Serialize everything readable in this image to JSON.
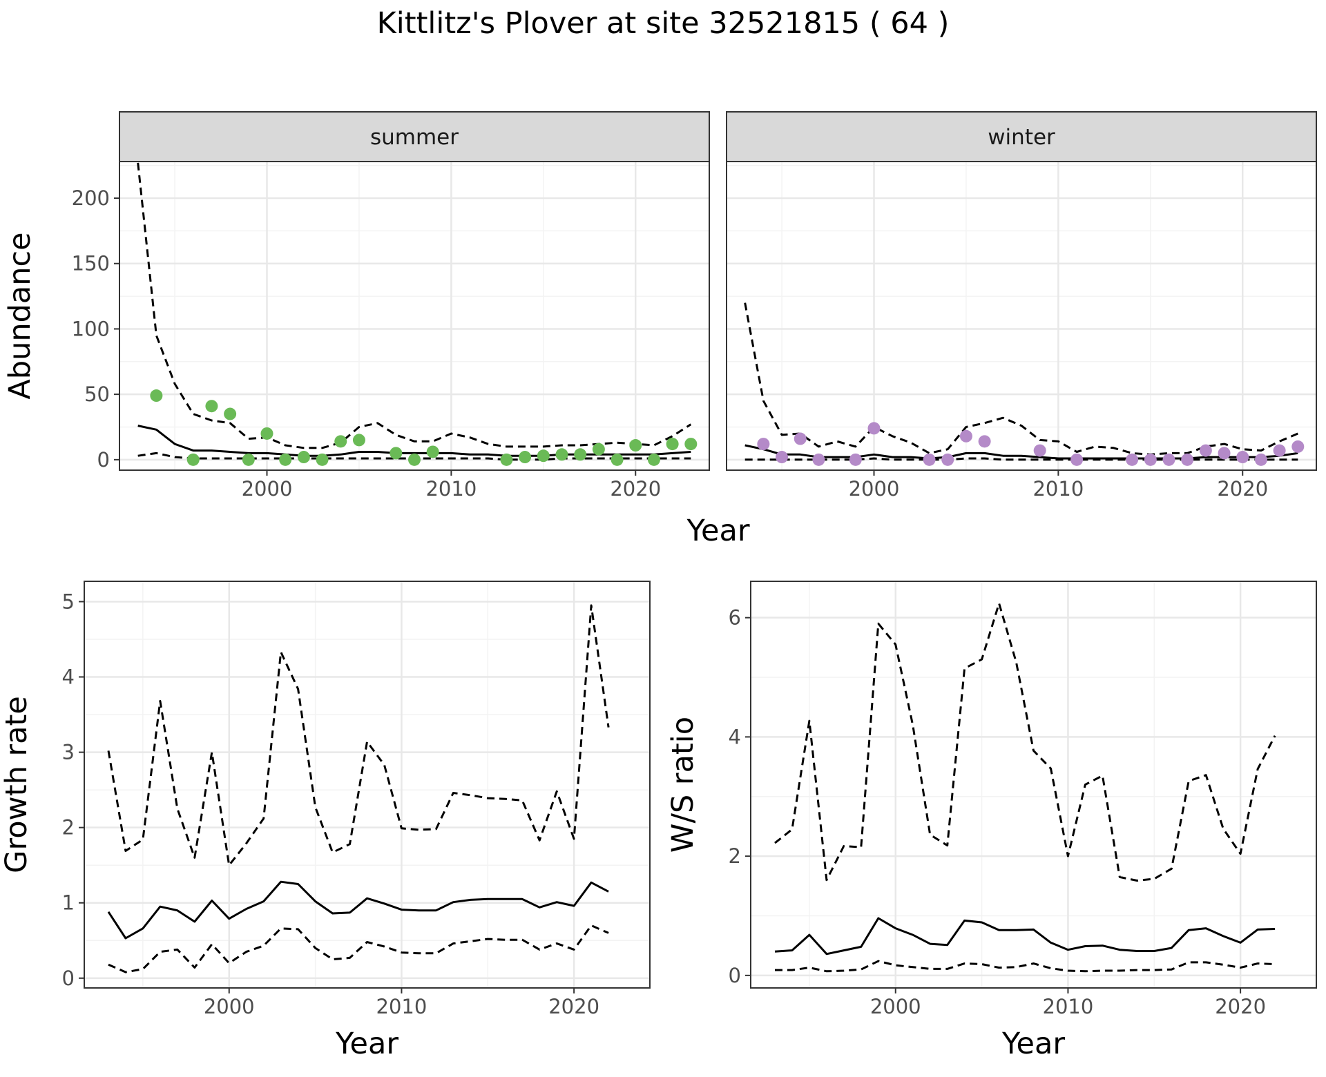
{
  "title": "Kittlitz's Plover at site 32521815 ( 64 )",
  "colors": {
    "summer_points": "#6aba56",
    "winter_points": "#b48ac8",
    "strip_fill": "#d9d9d9",
    "strip_border": "#333333",
    "panel_border": "#333333",
    "grid_major": "#e8e8e8",
    "grid_minor": "#f3f3f3",
    "line": "#000000",
    "axis_text": "#4d4d4d"
  },
  "chart_data": [
    {
      "type": "line",
      "panel": "summer",
      "strip_label": "summer",
      "xlabel": "Year",
      "ylabel": "Abundance",
      "xlim": [
        1992,
        2024
      ],
      "ylim": [
        -8,
        228
      ],
      "xticks": [
        2000,
        2010,
        2020
      ],
      "yticks": [
        0,
        50,
        100,
        150,
        200
      ],
      "x": [
        1993,
        1994,
        1995,
        1996,
        1997,
        1998,
        1999,
        2000,
        2001,
        2002,
        2003,
        2004,
        2005,
        2006,
        2007,
        2008,
        2009,
        2010,
        2011,
        2012,
        2013,
        2014,
        2015,
        2016,
        2017,
        2018,
        2019,
        2020,
        2021,
        2022,
        2023
      ],
      "series": [
        {
          "name": "",
          "style": "solid",
          "values": [
            26,
            23,
            12,
            7,
            7,
            6,
            5,
            5,
            4,
            3,
            3,
            4,
            6,
            6,
            5,
            5,
            5,
            5,
            4,
            4,
            3,
            3,
            3,
            4,
            4,
            4,
            4,
            4,
            4,
            5,
            6
          ]
        },
        {
          "name": "",
          "style": "dashed",
          "values": [
            227,
            95,
            58,
            35,
            30,
            28,
            16,
            17,
            11,
            9,
            9,
            13,
            25,
            28,
            19,
            14,
            14,
            20,
            17,
            12,
            10,
            10,
            10,
            11,
            11,
            12,
            13,
            12,
            11,
            18,
            27
          ]
        },
        {
          "name": "",
          "style": "dashed",
          "values": [
            3,
            5,
            2,
            1,
            1,
            1,
            1,
            1,
            1,
            1,
            1,
            1,
            1,
            1,
            1,
            1,
            1,
            1,
            1,
            1,
            0,
            0,
            0,
            1,
            1,
            1,
            1,
            1,
            1,
            1,
            1
          ]
        }
      ],
      "points": {
        "x": [
          1994,
          1996,
          1997,
          1998,
          1999,
          2000,
          2001,
          2002,
          2003,
          2004,
          2005,
          2007,
          2008,
          2009,
          2013,
          2014,
          2015,
          2016,
          2017,
          2018,
          2019,
          2020,
          2021,
          2022,
          2023
        ],
        "y": [
          49,
          0,
          41,
          35,
          0,
          20,
          0,
          2,
          0,
          14,
          15,
          5,
          0,
          6,
          0,
          2,
          3,
          4,
          4,
          8,
          0,
          11,
          0,
          12,
          12
        ]
      }
    },
    {
      "type": "line",
      "panel": "winter",
      "strip_label": "winter",
      "xlabel": "Year",
      "ylabel": "Abundance",
      "xlim": [
        1992,
        2024
      ],
      "ylim": [
        -8,
        228
      ],
      "xticks": [
        2000,
        2010,
        2020
      ],
      "yticks": [
        0,
        50,
        100,
        150,
        200
      ],
      "x": [
        1993,
        1994,
        1995,
        1996,
        1997,
        1998,
        1999,
        2000,
        2001,
        2002,
        2003,
        2004,
        2005,
        2006,
        2007,
        2008,
        2009,
        2010,
        2011,
        2012,
        2013,
        2014,
        2015,
        2016,
        2017,
        2018,
        2019,
        2020,
        2021,
        2022,
        2023
      ],
      "series": [
        {
          "name": "",
          "style": "solid",
          "values": [
            11,
            8,
            4,
            4,
            2,
            2,
            2,
            4,
            2,
            2,
            1,
            2,
            5,
            5,
            3,
            3,
            2,
            1,
            1,
            1,
            1,
            1,
            1,
            1,
            1,
            2,
            2,
            2,
            2,
            3,
            5
          ]
        },
        {
          "name": "",
          "style": "dashed",
          "values": [
            120,
            45,
            19,
            20,
            10,
            14,
            10,
            25,
            18,
            13,
            5,
            8,
            25,
            28,
            32,
            26,
            15,
            14,
            6,
            10,
            9,
            5,
            4,
            5,
            5,
            10,
            12,
            8,
            7,
            14,
            20
          ]
        },
        {
          "name": "",
          "style": "dashed",
          "values": [
            0,
            0,
            0,
            0,
            0,
            0,
            0,
            1,
            0,
            0,
            0,
            0,
            1,
            1,
            0,
            0,
            0,
            0,
            0,
            0,
            0,
            0,
            0,
            0,
            0,
            0,
            0,
            0,
            0,
            0,
            0
          ]
        }
      ],
      "points": {
        "x": [
          1994,
          1995,
          1996,
          1997,
          1999,
          2000,
          2003,
          2004,
          2005,
          2006,
          2009,
          2011,
          2014,
          2015,
          2016,
          2017,
          2018,
          2019,
          2020,
          2021,
          2022,
          2023
        ],
        "y": [
          12,
          2,
          16,
          0,
          0,
          24,
          0,
          0,
          18,
          14,
          7,
          0,
          0,
          0,
          0,
          0,
          7,
          5,
          2,
          0,
          7,
          10
        ]
      }
    },
    {
      "type": "line",
      "panel": "growth",
      "xlabel": "Year",
      "ylabel": "Growth rate",
      "xlim": [
        1991.6,
        2024.4
      ],
      "ylim": [
        -0.13,
        5.27
      ],
      "xticks": [
        2000,
        2010,
        2020
      ],
      "yticks": [
        0,
        1,
        2,
        3,
        4,
        5
      ],
      "x": [
        1993,
        1994,
        1995,
        1996,
        1997,
        1998,
        1999,
        2000,
        2001,
        2002,
        2003,
        2004,
        2005,
        2006,
        2007,
        2008,
        2009,
        2010,
        2011,
        2012,
        2013,
        2014,
        2015,
        2016,
        2017,
        2018,
        2019,
        2020,
        2021,
        2022
      ],
      "series": [
        {
          "name": "",
          "style": "solid",
          "values": [
            0.88,
            0.53,
            0.66,
            0.95,
            0.9,
            0.75,
            1.03,
            0.79,
            0.92,
            1.02,
            1.28,
            1.25,
            1.02,
            0.86,
            0.87,
            1.06,
            0.99,
            0.91,
            0.9,
            0.9,
            1.01,
            1.04,
            1.05,
            1.05,
            1.05,
            0.94,
            1.01,
            0.96,
            1.27,
            1.15
          ]
        },
        {
          "name": "",
          "style": "dashed",
          "values": [
            3.02,
            1.69,
            1.84,
            3.68,
            2.25,
            1.6,
            3.0,
            1.5,
            1.79,
            2.12,
            4.33,
            3.84,
            2.27,
            1.67,
            1.78,
            3.14,
            2.83,
            1.99,
            1.97,
            1.98,
            2.46,
            2.43,
            2.39,
            2.38,
            2.36,
            1.83,
            2.48,
            1.85,
            4.95,
            3.33
          ]
        },
        {
          "name": "",
          "style": "dashed",
          "values": [
            0.18,
            0.08,
            0.12,
            0.35,
            0.38,
            0.14,
            0.45,
            0.2,
            0.35,
            0.43,
            0.66,
            0.65,
            0.4,
            0.25,
            0.27,
            0.48,
            0.42,
            0.34,
            0.33,
            0.33,
            0.46,
            0.49,
            0.52,
            0.51,
            0.51,
            0.38,
            0.46,
            0.38,
            0.7,
            0.6
          ]
        }
      ]
    },
    {
      "type": "line",
      "panel": "ratio",
      "xlabel": "Year",
      "ylabel": "W/S ratio",
      "xlim": [
        1991.6,
        2024.4
      ],
      "ylim": [
        -0.21,
        6.61
      ],
      "xticks": [
        2000,
        2010,
        2020
      ],
      "yticks": [
        0,
        2,
        4,
        6
      ],
      "x": [
        1993,
        1994,
        1995,
        1996,
        1997,
        1998,
        1999,
        2000,
        2001,
        2002,
        2003,
        2004,
        2005,
        2006,
        2007,
        2008,
        2009,
        2010,
        2011,
        2012,
        2013,
        2014,
        2015,
        2016,
        2017,
        2018,
        2019,
        2020,
        2021,
        2022
      ],
      "series": [
        {
          "name": "",
          "style": "solid",
          "values": [
            0.4,
            0.42,
            0.68,
            0.36,
            0.42,
            0.48,
            0.96,
            0.79,
            0.68,
            0.53,
            0.51,
            0.92,
            0.89,
            0.76,
            0.76,
            0.77,
            0.55,
            0.43,
            0.49,
            0.5,
            0.43,
            0.41,
            0.41,
            0.46,
            0.76,
            0.79,
            0.66,
            0.55,
            0.77,
            0.78
          ]
        },
        {
          "name": "",
          "style": "dashed",
          "values": [
            2.22,
            2.45,
            4.27,
            1.6,
            2.17,
            2.15,
            5.9,
            5.55,
            4.2,
            2.36,
            2.18,
            5.15,
            5.3,
            6.24,
            5.25,
            3.77,
            3.47,
            2.0,
            3.2,
            3.35,
            1.65,
            1.59,
            1.62,
            1.79,
            3.26,
            3.36,
            2.46,
            2.04,
            3.46,
            4.02
          ]
        },
        {
          "name": "",
          "style": "dashed",
          "values": [
            0.09,
            0.09,
            0.13,
            0.07,
            0.08,
            0.1,
            0.24,
            0.17,
            0.14,
            0.11,
            0.11,
            0.2,
            0.19,
            0.13,
            0.14,
            0.2,
            0.12,
            0.08,
            0.07,
            0.08,
            0.08,
            0.09,
            0.09,
            0.1,
            0.22,
            0.22,
            0.18,
            0.13,
            0.2,
            0.19
          ]
        }
      ]
    }
  ]
}
